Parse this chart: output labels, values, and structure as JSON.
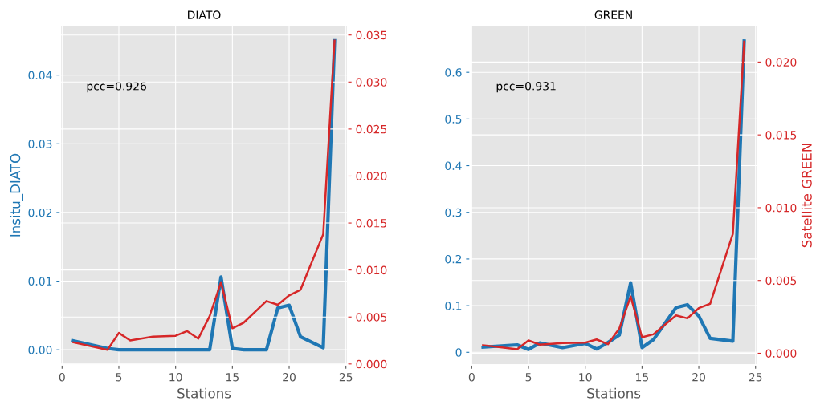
{
  "chart_data": [
    {
      "type": "line",
      "title": "DIATO",
      "xlabel": "Stations",
      "ylabel": "Insitu_DIATO",
      "annotations": [
        "pcc=0.926"
      ],
      "grid": true,
      "legend": false,
      "x": [
        1,
        4,
        5,
        6,
        8,
        10,
        11,
        12,
        13,
        14,
        15,
        16,
        18,
        19,
        20,
        21,
        23,
        24
      ],
      "series": [
        {
          "color": "#1f77b4",
          "values": [
            0.0013,
            0.0002,
            0,
            0,
            0,
            0,
            0,
            0,
            0,
            0.0106,
            0.0002,
            0,
            0,
            0.0061,
            0.0065,
            0.0019,
            0.0003,
            0.045
          ]
        },
        {
          "color": "#d62728",
          "axis": "y2",
          "values": [
            0.0023,
            0.0015,
            0.0033,
            0.0025,
            0.0029,
            0.003,
            0.0035,
            0.0027,
            0.0051,
            0.0087,
            0.0038,
            0.0044,
            0.0067,
            0.0063,
            0.0073,
            0.0079,
            0.0138,
            0.0344
          ]
        }
      ],
      "xlim": [
        -0.15,
        25.15
      ],
      "xticks": [
        0,
        5,
        10,
        15,
        20,
        25
      ],
      "ylim": [
        -0.0022,
        0.0472
      ],
      "yticks": [
        {
          "value": 0,
          "label": "0.00"
        },
        {
          "value": 0.01,
          "label": "0.01"
        },
        {
          "value": 0.02,
          "label": "0.02"
        },
        {
          "value": 0.03,
          "label": "0.03"
        },
        {
          "value": 0.04,
          "label": "0.04"
        }
      ],
      "y2lim": [
        -0.0001,
        0.036
      ],
      "y2ticks": [
        {
          "value": 0,
          "label": "0.000"
        },
        {
          "value": 0.005,
          "label": "0.005"
        },
        {
          "value": 0.01,
          "label": "0.010"
        },
        {
          "value": 0.015,
          "label": "0.015"
        },
        {
          "value": 0.02,
          "label": "0.020"
        },
        {
          "value": 0.025,
          "label": "0.025"
        },
        {
          "value": 0.03,
          "label": "0.030"
        },
        {
          "value": 0.035,
          "label": "0.035"
        }
      ]
    },
    {
      "type": "line",
      "title": "GREEN",
      "xlabel": "Stations",
      "y2label": "Satellite GREEN",
      "annotations": [
        "pcc=0.931"
      ],
      "grid": true,
      "legend": false,
      "x": [
        1,
        4,
        5,
        6,
        8,
        10,
        11,
        12,
        13,
        14,
        15,
        16,
        18,
        19,
        20,
        21,
        23,
        24
      ],
      "series": [
        {
          "color": "#1f77b4",
          "values": [
            0.011,
            0.016,
            0.006,
            0.02,
            0.01,
            0.019,
            0.007,
            0.021,
            0.037,
            0.149,
            0.01,
            0.027,
            0.096,
            0.102,
            0.078,
            0.03,
            0.024,
            0.667
          ]
        },
        {
          "color": "#d62728",
          "axis": "y2",
          "values": [
            0.00055,
            0.00027,
            0.00088,
            0.00059,
            0.0007,
            0.00073,
            0.00095,
            0.00062,
            0.0017,
            0.0039,
            0.0011,
            0.0013,
            0.0026,
            0.0024,
            0.0031,
            0.0034,
            0.0082,
            0.0214
          ]
        }
      ],
      "xlim": [
        -0.15,
        25.15
      ],
      "xticks": [
        0,
        5,
        10,
        15,
        20,
        25
      ],
      "ylim": [
        -0.027,
        0.7
      ],
      "yticks": [
        0,
        0.1,
        0.2,
        0.3,
        0.4,
        0.5,
        0.6
      ],
      "y2lim": [
        -0.0008,
        0.0225
      ],
      "y2ticks": [
        {
          "value": 0,
          "label": "0.000"
        },
        {
          "value": 0.005,
          "label": "0.005"
        },
        {
          "value": 0.01,
          "label": "0.010"
        },
        {
          "value": 0.015,
          "label": "0.015"
        },
        {
          "value": 0.02,
          "label": "0.020"
        }
      ]
    }
  ]
}
